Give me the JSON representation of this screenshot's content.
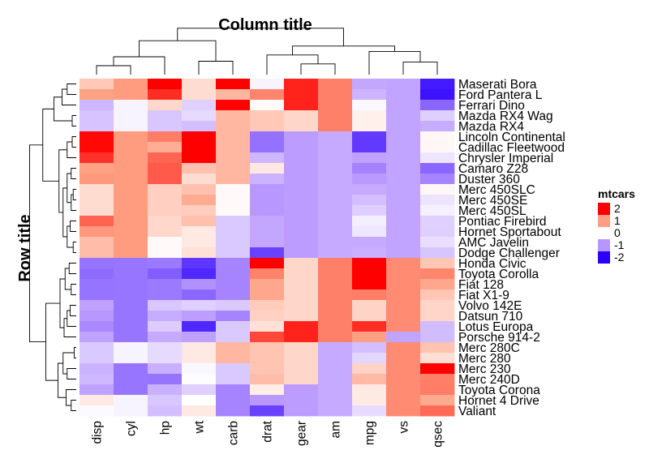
{
  "chart_data": {
    "type": "heatmap",
    "title": "Column title",
    "ylabel": "Row title",
    "columns": [
      "disp",
      "cyl",
      "hp",
      "wt",
      "carb",
      "drat",
      "gear",
      "am",
      "mpg",
      "vs",
      "qsec"
    ],
    "rows": [
      "Maserati Bora",
      "Ford Pantera L",
      "Ferrari Dino",
      "Mazda RX4 Wag",
      "Mazda RX4",
      "Lincoln Continental",
      "Cadillac Fleetwood",
      "Chrysler Imperial",
      "Camaro Z28",
      "Duster 360",
      "Merc 450SLC",
      "Merc 450SE",
      "Merc 450SL",
      "Pontiac Firebird",
      "Hornet Sportabout",
      "AMC Javelin",
      "Dodge Challenger",
      "Honda Civic",
      "Toyota Corolla",
      "Fiat 128",
      "Fiat X1-9",
      "Volvo 142E",
      "Datsun 710",
      "Lotus Europa",
      "Porsche 914-2",
      "Merc 280C",
      "Merc 280",
      "Merc 230",
      "Merc 240D",
      "Toyota Corona",
      "Hornet 4 Drive",
      "Valiant"
    ],
    "values": [
      [
        0.57,
        1.01,
        2.75,
        0.36,
        3.21,
        -0.11,
        1.78,
        1.19,
        -0.84,
        -0.87,
        -1.82
      ],
      [
        0.97,
        1.01,
        1.71,
        0.36,
        0.74,
        1.16,
        1.78,
        1.19,
        -0.71,
        -0.87,
        -1.87
      ],
      [
        -0.69,
        -0.11,
        0.41,
        -0.45,
        1.98,
        0.04,
        1.78,
        1.19,
        -0.06,
        -0.87,
        -1.32
      ],
      [
        -0.57,
        -0.11,
        -0.54,
        -0.35,
        0.74,
        0.57,
        0.42,
        1.19,
        0.15,
        -0.87,
        -0.46
      ],
      [
        -0.57,
        -0.11,
        -0.54,
        -0.61,
        0.74,
        0.57,
        0.42,
        1.19,
        0.15,
        -0.87,
        -0.78
      ],
      [
        1.95,
        1.01,
        1.21,
        2.26,
        0.74,
        -1.25,
        -0.93,
        -0.81,
        -1.61,
        -0.87,
        0.07
      ],
      [
        1.95,
        1.01,
        0.85,
        2.08,
        0.74,
        -1.25,
        -0.93,
        -0.81,
        -1.61,
        -0.87,
        0.08
      ],
      [
        1.69,
        1.01,
        1.36,
        2.17,
        0.74,
        -0.69,
        -0.93,
        -0.81,
        -0.89,
        -0.87,
        -0.24
      ],
      [
        0.97,
        1.01,
        1.43,
        0.64,
        0.74,
        0.24,
        -0.93,
        -0.81,
        -1.13,
        -0.87,
        -1.31
      ],
      [
        1.04,
        1.01,
        1.43,
        0.36,
        0.74,
        -0.72,
        -0.93,
        -0.81,
        -0.96,
        -0.87,
        -1.12
      ],
      [
        0.37,
        1.01,
        0.49,
        0.64,
        0.05,
        -0.98,
        -0.93,
        -0.81,
        -0.81,
        -0.87,
        0.08
      ],
      [
        0.37,
        1.01,
        0.49,
        0.87,
        0.05,
        -0.98,
        -0.93,
        -0.81,
        -0.61,
        -0.87,
        -0.25
      ],
      [
        0.37,
        1.01,
        0.49,
        0.52,
        0.05,
        -0.98,
        -0.93,
        -0.81,
        -0.47,
        -0.87,
        -0.14
      ],
      [
        1.37,
        1.01,
        0.41,
        0.65,
        -0.51,
        -0.84,
        -0.93,
        -0.81,
        -0.15,
        -0.87,
        -0.45
      ],
      [
        1.04,
        1.01,
        0.41,
        0.23,
        -0.51,
        -0.84,
        -0.93,
        -0.81,
        -0.23,
        -0.87,
        -0.46
      ],
      [
        0.69,
        1.01,
        0.05,
        0.23,
        -0.51,
        -0.84,
        -0.93,
        -0.81,
        -0.81,
        -0.87,
        -0.31
      ],
      [
        0.69,
        1.01,
        0.05,
        0.31,
        -0.51,
        -1.56,
        -0.93,
        -0.81,
        -0.76,
        -0.87,
        -0.55
      ],
      [
        -1.23,
        -1.22,
        -1.19,
        -1.64,
        -1.12,
        2.49,
        0.42,
        1.19,
        2.04,
        1.12,
        0.59
      ],
      [
        -1.29,
        -1.22,
        -1.38,
        -1.74,
        -1.12,
        1.17,
        0.42,
        1.19,
        2.29,
        1.12,
        1.15
      ],
      [
        -1.23,
        -1.22,
        -1.19,
        -1.04,
        -1.12,
        0.91,
        0.42,
        1.19,
        2.04,
        1.12,
        0.91
      ],
      [
        -1.23,
        -1.22,
        -1.19,
        -1.31,
        -1.12,
        0.91,
        0.42,
        1.19,
        1.2,
        1.12,
        0.59
      ],
      [
        -0.89,
        -1.22,
        -0.54,
        -0.45,
        -0.51,
        0.53,
        0.42,
        1.19,
        0.45,
        1.12,
        0.43
      ],
      [
        -0.99,
        -1.22,
        -0.78,
        -0.92,
        -1.12,
        0.47,
        0.42,
        1.19,
        0.45,
        1.12,
        0.43
      ],
      [
        -1.09,
        -1.22,
        -0.49,
        -1.74,
        -0.51,
        0.32,
        1.78,
        1.19,
        1.71,
        1.12,
        -0.64
      ],
      [
        -0.89,
        -1.22,
        -0.81,
        -0.89,
        -0.51,
        1.55,
        1.78,
        1.19,
        0.98,
        -0.87,
        -0.64
      ],
      [
        -0.51,
        -0.11,
        -0.35,
        0.23,
        0.74,
        0.61,
        0.42,
        -0.81,
        -0.61,
        1.12,
        0.62
      ],
      [
        -0.51,
        -0.11,
        -0.35,
        0.23,
        0.74,
        0.61,
        0.42,
        -0.81,
        -0.38,
        1.12,
        0.33
      ],
      [
        -0.73,
        -1.22,
        -0.75,
        -0.07,
        -0.51,
        0.6,
        0.42,
        -0.81,
        0.45,
        1.12,
        2.83
      ],
      [
        -0.68,
        -1.22,
        -1.23,
        -0.03,
        -0.51,
        0.68,
        0.42,
        -0.81,
        0.72,
        1.12,
        1.2
      ],
      [
        -0.89,
        -1.22,
        -0.74,
        -0.45,
        -1.12,
        0.19,
        -0.93,
        -0.81,
        0.22,
        1.12,
        1.21
      ],
      [
        0.22,
        -0.11,
        -0.54,
        -0.0,
        -1.12,
        -0.97,
        -0.93,
        -0.81,
        0.22,
        1.12,
        0.89
      ],
      [
        -0.05,
        -0.11,
        -0.61,
        0.23,
        -1.12,
        -1.56,
        -0.93,
        -0.81,
        -0.33,
        1.12,
        1.33
      ]
    ],
    "legend": {
      "title": "mtcars",
      "breaks": [
        2,
        1,
        0,
        -1,
        -2
      ],
      "labels": [
        "2",
        "1",
        "0",
        "-1",
        "-2"
      ],
      "colors": [
        "#ff0000",
        "#ff9e81",
        "#ffffff",
        "#b796ff",
        "#2b00ff"
      ]
    },
    "legend_position": "right"
  }
}
